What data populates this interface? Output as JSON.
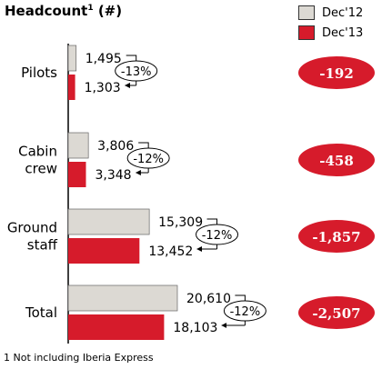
{
  "header": {
    "title": "Headcount",
    "title_sup": "1",
    "title_unit": "(#)"
  },
  "footnote": "1 Not including Iberia Express",
  "chart_data": {
    "type": "bar",
    "orientation": "horizontal",
    "categories": [
      [
        "Pilots"
      ],
      [
        "Cabin",
        "crew"
      ],
      [
        "Ground",
        "staff"
      ],
      [
        "Total"
      ]
    ],
    "series": [
      {
        "name": "Dec'12",
        "color": "#dcd9d3",
        "values": [
          1495,
          3806,
          15309,
          20610
        ],
        "labels": [
          "1,495",
          "3,806",
          "15,309",
          "20,610"
        ]
      },
      {
        "name": "Dec'13",
        "color": "#d61b2b",
        "values": [
          1303,
          3348,
          13452,
          18103
        ],
        "labels": [
          "1,303",
          "3,348",
          "13,452",
          "18,103"
        ]
      }
    ],
    "pct_change": [
      "-13%",
      "-12%",
      "-12%",
      "-12%"
    ],
    "abs_change": [
      "-192",
      "-458",
      "-1,857",
      "-2,507"
    ],
    "legend_placement": "top-right",
    "grid": false
  }
}
